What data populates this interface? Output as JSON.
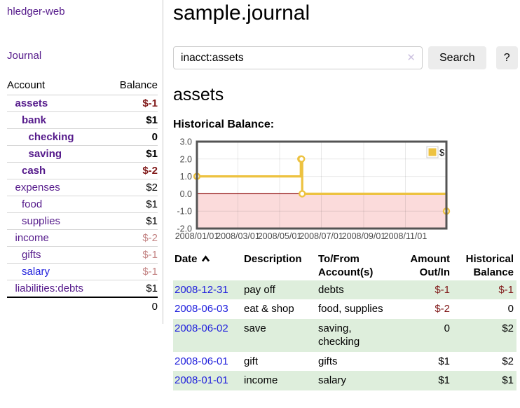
{
  "app_title": "hledger-web",
  "sidebar": {
    "nav_journal": "Journal",
    "accounts": {
      "header_account": "Account",
      "header_balance": "Balance",
      "rows": [
        {
          "name": "assets",
          "balance": "$-1",
          "depth": 1,
          "bold": true,
          "balance_style": "neg-strong",
          "link_style": "purple"
        },
        {
          "name": "bank",
          "balance": "$1",
          "depth": 2,
          "bold": true,
          "balance_style": "",
          "link_style": "purple"
        },
        {
          "name": "checking",
          "balance": "0",
          "depth": 3,
          "bold": true,
          "balance_style": "",
          "link_style": "purple"
        },
        {
          "name": "saving",
          "balance": "$1",
          "depth": 3,
          "bold": true,
          "balance_style": "",
          "link_style": "purple"
        },
        {
          "name": "cash",
          "balance": "$-2",
          "depth": 2,
          "bold": true,
          "balance_style": "neg-strong",
          "link_style": "purple"
        },
        {
          "name": "expenses",
          "balance": "$2",
          "depth": 1,
          "bold": false,
          "balance_style": "",
          "link_style": "purple"
        },
        {
          "name": "food",
          "balance": "$1",
          "depth": 2,
          "bold": false,
          "balance_style": "",
          "link_style": "purple"
        },
        {
          "name": "supplies",
          "balance": "$1",
          "depth": 2,
          "bold": false,
          "balance_style": "",
          "link_style": "purple"
        },
        {
          "name": "income",
          "balance": "$-2",
          "depth": 1,
          "bold": false,
          "balance_style": "neg-weak",
          "link_style": "purple"
        },
        {
          "name": "gifts",
          "balance": "$-1",
          "depth": 2,
          "bold": false,
          "balance_style": "neg-weak",
          "link_style": "purple"
        },
        {
          "name": "salary",
          "balance": "$-1",
          "depth": 2,
          "bold": false,
          "balance_style": "neg-weak",
          "link_style": "blue"
        },
        {
          "name": "liabilities:debts",
          "balance": "$1",
          "depth": 1,
          "bold": false,
          "balance_style": "",
          "link_style": "purple"
        }
      ],
      "total": "0"
    }
  },
  "main": {
    "title": "sample.journal",
    "search": {
      "value": "inacct:assets",
      "clear_icon": "✕",
      "button_label": "Search",
      "help_label": "?"
    },
    "account_heading": "assets",
    "chart_label": "Historical Balance:"
  },
  "chart_data": {
    "type": "line",
    "title": "Historical Balance",
    "series": [
      {
        "name": "$",
        "color": "#EDC240",
        "step": true,
        "points": [
          [
            "2008-01-01",
            1
          ],
          [
            "2008-06-01",
            2
          ],
          [
            "2008-06-02",
            2
          ],
          [
            "2008-06-03",
            0
          ],
          [
            "2008-12-31",
            -1
          ]
        ]
      }
    ],
    "x_range": [
      "2008-01-01",
      "2008-12-31"
    ],
    "ylim": [
      -2,
      3
    ],
    "y_ticks": [
      {
        "v": 3,
        "label": "3.0"
      },
      {
        "v": 2,
        "label": "2.0"
      },
      {
        "v": 1,
        "label": "1.0"
      },
      {
        "v": 0,
        "label": "0.0"
      },
      {
        "v": -1,
        "label": "-1.0"
      },
      {
        "v": -2,
        "label": "-2.0"
      }
    ],
    "x_ticks": [
      {
        "date": "2008-01-01",
        "label": "2008/01/01"
      },
      {
        "date": "2008-03-01",
        "label": "2008/03/01"
      },
      {
        "date": "2008-05-01",
        "label": "2008/05/01"
      },
      {
        "date": "2008-07-01",
        "label": "2008/07/01"
      },
      {
        "date": "2008-09-01",
        "label": "2008/09/01"
      },
      {
        "date": "2008-11-01",
        "label": "2008/11/01"
      }
    ],
    "legend": {
      "label": "$",
      "position": "top-right"
    },
    "grid": true,
    "negative_region_fill": "#FBDBDB",
    "zero_line_color": "#8B0000"
  },
  "register": {
    "headers": {
      "date": "Date",
      "description": "Description",
      "accounts": "To/From Account(s)",
      "amount": "Amount Out/In",
      "balance": "Historical Balance"
    },
    "sort": {
      "column": "date",
      "direction": "ascending"
    },
    "rows": [
      {
        "date": "2008-12-31",
        "description": "pay off",
        "accounts": "debts",
        "amount": "$-1",
        "balance": "$-1",
        "amount_negative": true,
        "balance_negative": true
      },
      {
        "date": "2008-06-03",
        "description": "eat & shop",
        "accounts": "food, supplies",
        "amount": "$-2",
        "balance": "0",
        "amount_negative": true,
        "balance_negative": false
      },
      {
        "date": "2008-06-02",
        "description": "save",
        "accounts": "saving, checking",
        "amount": "0",
        "balance": "$2",
        "amount_negative": false,
        "balance_negative": false
      },
      {
        "date": "2008-06-01",
        "description": "gift",
        "accounts": "gifts",
        "amount": "$1",
        "balance": "$2",
        "amount_negative": false,
        "balance_negative": false
      },
      {
        "date": "2008-01-01",
        "description": "income",
        "accounts": "salary",
        "amount": "$1",
        "balance": "$1",
        "amount_negative": false,
        "balance_negative": false
      }
    ]
  },
  "colors": {
    "purple_link": "#551A8B",
    "blue_link": "#2222DD",
    "negative_strong": "#801919",
    "negative_weak": "#C48585",
    "row_green": "#DEEEDC",
    "chart_line": "#EDC240",
    "chart_negative_fill": "#FBDBDB",
    "zero_line": "#8B0000",
    "chart_border": "#545454",
    "button_bg": "#ECECEC"
  }
}
